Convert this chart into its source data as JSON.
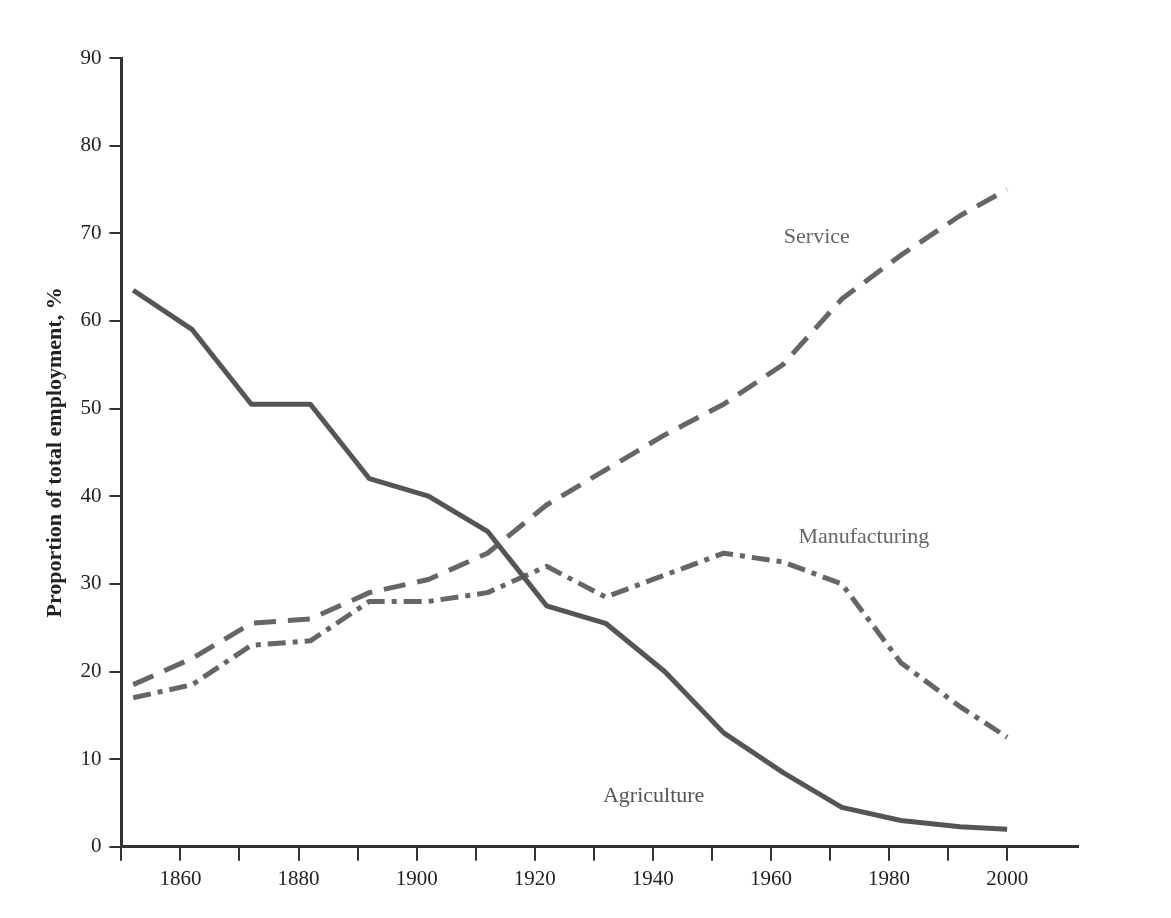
{
  "chart_data": {
    "type": "line",
    "ylabel": "Proportion of total employment, %",
    "xlim": [
      1850,
      2012
    ],
    "xticks": [
      {
        "value": 1850,
        "label": null
      },
      1860,
      {
        "value": 1870,
        "label": null
      },
      1880,
      {
        "value": 1890,
        "label": null
      },
      1900,
      {
        "value": 1910,
        "label": null
      },
      1920,
      {
        "value": 1930,
        "label": null
      },
      1940,
      {
        "value": 1950,
        "label": null
      },
      1960,
      {
        "value": 1970,
        "label": null
      },
      1980,
      {
        "value": 1990,
        "label": null
      },
      2000
    ],
    "ylim": [
      0,
      90
    ],
    "yticks": [
      0,
      10,
      20,
      30,
      40,
      50,
      60,
      70,
      80,
      90
    ],
    "grid": false,
    "legend": false,
    "marker": "none",
    "x": [
      1852,
      1862,
      1872,
      1882,
      1892,
      1902,
      1912,
      1922,
      1932,
      1942,
      1952,
      1962,
      1972,
      1982,
      1992,
      2000
    ],
    "series": [
      {
        "name": "Agriculture",
        "color": "#555555",
        "line_style": "solid",
        "values": [
          63.5,
          59,
          50.5,
          50.5,
          42,
          40,
          36,
          27.5,
          25.5,
          20,
          13,
          8.5,
          4.5,
          3,
          2.3,
          2
        ]
      },
      {
        "name": "Service",
        "color": "#666666",
        "line_style": "dashed",
        "values": [
          18.5,
          21.5,
          25.5,
          26,
          29,
          30.5,
          33.5,
          39,
          43,
          47,
          50.5,
          55,
          62.5,
          67.5,
          72,
          75
        ]
      },
      {
        "name": "Manufacturing",
        "color": "#666666",
        "line_style": "dotted",
        "values": [
          17,
          18.5,
          23,
          23.5,
          28,
          28,
          29,
          32,
          28.5,
          31,
          33.5,
          32.5,
          30,
          21,
          16,
          12.5
        ]
      }
    ]
  }
}
